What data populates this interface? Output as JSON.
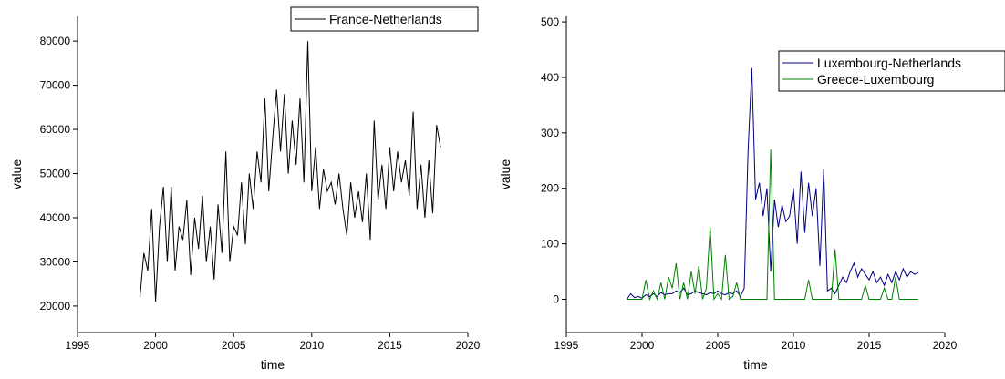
{
  "chart_data": [
    {
      "type": "line",
      "x_label": "time",
      "y_label": "value",
      "xlim": [
        1995,
        2020
      ],
      "xticks": [
        1995,
        2000,
        2005,
        2010,
        2015,
        2020
      ],
      "ylim": [
        14000,
        85600
      ],
      "yticks": [
        20000,
        30000,
        40000,
        50000,
        60000,
        70000,
        80000
      ],
      "legend": "upper right",
      "x": [
        1999,
        1999.25,
        1999.5,
        1999.75,
        2000,
        2000.25,
        2000.5,
        2000.75,
        2001,
        2001.25,
        2001.5,
        2001.75,
        2002,
        2002.25,
        2002.5,
        2002.75,
        2003,
        2003.25,
        2003.5,
        2003.75,
        2004,
        2004.25,
        2004.5,
        2004.75,
        2005,
        2005.25,
        2005.5,
        2005.75,
        2006,
        2006.25,
        2006.5,
        2006.75,
        2007,
        2007.25,
        2007.5,
        2007.75,
        2008,
        2008.25,
        2008.5,
        2008.75,
        2009,
        2009.25,
        2009.5,
        2009.75,
        2010,
        2010.25,
        2010.5,
        2010.75,
        2011,
        2011.25,
        2011.5,
        2011.75,
        2012,
        2012.25,
        2012.5,
        2012.75,
        2013,
        2013.25,
        2013.5,
        2013.75,
        2014,
        2014.25,
        2014.5,
        2014.75,
        2015,
        2015.25,
        2015.5,
        2015.75,
        2016,
        2016.25,
        2016.5,
        2016.75,
        2017,
        2017.25,
        2017.5,
        2017.75,
        2018,
        2018.25
      ],
      "series": [
        {
          "name": "France-Netherlands",
          "color": "#000000",
          "values": [
            22000,
            32000,
            28000,
            42000,
            21000,
            38000,
            47000,
            30000,
            47000,
            28000,
            38000,
            35000,
            44000,
            27000,
            40000,
            33000,
            45000,
            30000,
            38000,
            26000,
            43000,
            32000,
            55000,
            30000,
            38000,
            36000,
            48000,
            34000,
            50000,
            42000,
            55000,
            48000,
            67000,
            46000,
            58000,
            69000,
            55000,
            68000,
            50000,
            62000,
            52000,
            67000,
            48000,
            80000,
            46000,
            56000,
            42000,
            51000,
            46000,
            48000,
            43000,
            50000,
            42000,
            36000,
            48000,
            40000,
            46000,
            39000,
            50000,
            35000,
            62000,
            44000,
            52000,
            42000,
            56000,
            46000,
            55000,
            48000,
            53000,
            45000,
            64000,
            42000,
            52000,
            40000,
            53000,
            41000,
            61000,
            56000
          ]
        }
      ]
    },
    {
      "type": "line",
      "x_label": "time",
      "y_label": "value",
      "xlim": [
        1995,
        2020
      ],
      "xticks": [
        1995,
        2000,
        2005,
        2010,
        2015,
        2020
      ],
      "ylim": [
        -60,
        510
      ],
      "yticks": [
        0,
        100,
        200,
        300,
        400,
        500
      ],
      "legend": "upper right",
      "x": [
        1999,
        1999.25,
        1999.5,
        1999.75,
        2000,
        2000.25,
        2000.5,
        2000.75,
        2001,
        2001.25,
        2001.5,
        2001.75,
        2002,
        2002.25,
        2002.5,
        2002.75,
        2003,
        2003.25,
        2003.5,
        2003.75,
        2004,
        2004.25,
        2004.5,
        2004.75,
        2005,
        2005.25,
        2005.5,
        2005.75,
        2006,
        2006.25,
        2006.5,
        2006.75,
        2007,
        2007.25,
        2007.5,
        2007.75,
        2008,
        2008.25,
        2008.5,
        2008.75,
        2009,
        2009.25,
        2009.5,
        2009.75,
        2010,
        2010.25,
        2010.5,
        2010.75,
        2011,
        2011.25,
        2011.5,
        2011.75,
        2012,
        2012.25,
        2012.5,
        2012.75,
        2013,
        2013.25,
        2013.5,
        2013.75,
        2014,
        2014.25,
        2014.5,
        2014.75,
        2015,
        2015.25,
        2015.5,
        2015.75,
        2016,
        2016.25,
        2016.5,
        2016.75,
        2017,
        2017.25,
        2017.5,
        2017.75,
        2018,
        2018.25
      ],
      "series": [
        {
          "name": "Luxembourg-Netherlands",
          "color": "#000080",
          "values": [
            0,
            10,
            3,
            5,
            2,
            8,
            5,
            10,
            5,
            12,
            8,
            10,
            10,
            15,
            12,
            20,
            8,
            10,
            15,
            12,
            10,
            8,
            12,
            10,
            15,
            10,
            8,
            12,
            10,
            15,
            5,
            20,
            265,
            417,
            180,
            210,
            150,
            200,
            50,
            180,
            130,
            170,
            140,
            150,
            200,
            100,
            230,
            120,
            210,
            150,
            200,
            60,
            235,
            15,
            20,
            10,
            25,
            40,
            30,
            50,
            65,
            40,
            55,
            45,
            35,
            50,
            30,
            40,
            25,
            45,
            30,
            50,
            35,
            55,
            40,
            50,
            45,
            48
          ]
        },
        {
          "name": "Greece-Luxembourg",
          "color": "#008000",
          "values": [
            0,
            0,
            0,
            0,
            0,
            35,
            0,
            15,
            0,
            30,
            0,
            40,
            20,
            65,
            0,
            30,
            0,
            50,
            10,
            60,
            0,
            20,
            130,
            0,
            10,
            0,
            80,
            0,
            5,
            30,
            0,
            0,
            0,
            0,
            0,
            0,
            0,
            0,
            270,
            0,
            0,
            0,
            0,
            0,
            0,
            0,
            0,
            0,
            35,
            0,
            0,
            0,
            0,
            0,
            0,
            90,
            0,
            0,
            0,
            0,
            0,
            0,
            0,
            25,
            0,
            0,
            0,
            0,
            20,
            0,
            0,
            40,
            0,
            0,
            0,
            0,
            0,
            0
          ]
        }
      ]
    }
  ]
}
